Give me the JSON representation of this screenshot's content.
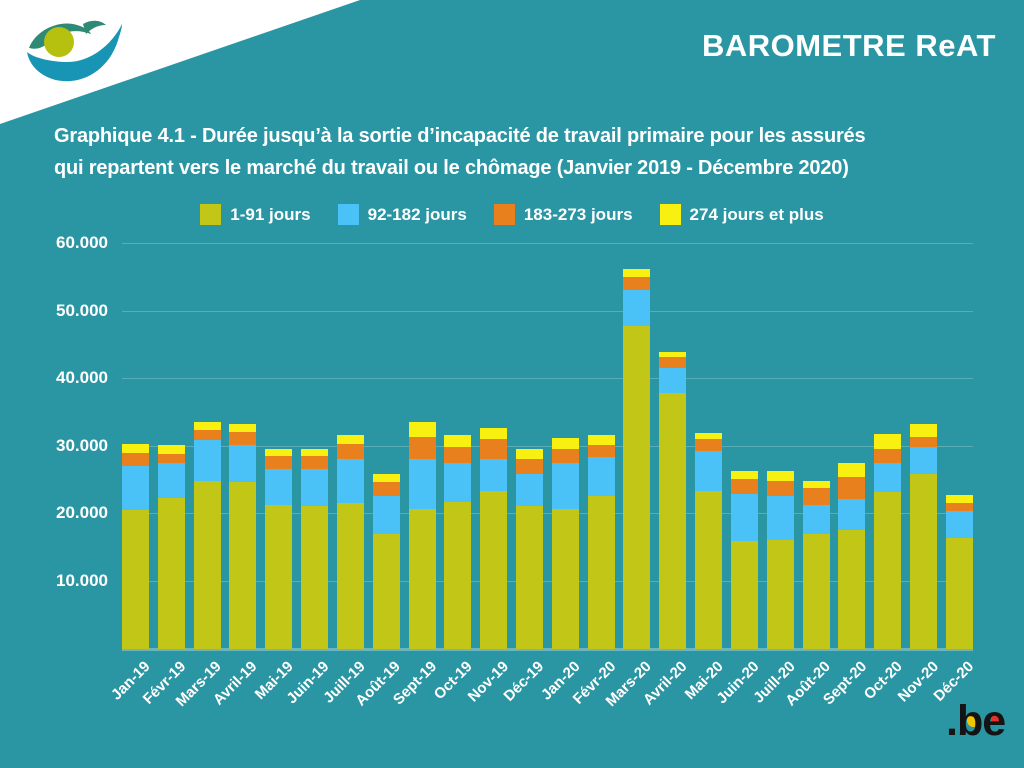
{
  "brand": {
    "title": "BAROMETRE ReAT"
  },
  "title": {
    "line1": "Graphique 4.1 - Durée jusqu’à la sortie d’incapacité de travail primaire pour les assurés",
    "line2": "qui repartent vers le marché du travail ou le chômage (Janvier 2019 - Décembre 2020)"
  },
  "footer": {
    "be_logo_text": ".be"
  },
  "colors": {
    "background": "#2b96a3",
    "header_band": "#ffffff",
    "text": "#ffffff",
    "gridline": "rgba(255,255,255,0.22)",
    "logo_light_teal": "#1895b4",
    "logo_dark_teal": "#2e8a74",
    "logo_olive": "#b5c00f",
    "be_black": "#141414",
    "be_yellow": "#f2c500",
    "be_red": "#e63229"
  },
  "chart_data": {
    "type": "bar",
    "stacked": true,
    "grid": true,
    "legend_position": "top",
    "ylim": [
      0,
      62000
    ],
    "xlabel": "",
    "ylabel": "",
    "categories": [
      "Jan-19",
      "Févr-19",
      "Mars-19",
      "Avril-19",
      "Mai-19",
      "Juin-19",
      "Juill-19",
      "Août-19",
      "Sept-19",
      "Oct-19",
      "Nov-19",
      "Déc-19",
      "Jan-20",
      "Févr-20",
      "Mars-20",
      "Avril-20",
      "Mai-20",
      "Juin-20",
      "Juill-20",
      "Août-20",
      "Sept-20",
      "Oct-20",
      "Nov-20",
      "Déc-20"
    ],
    "series": [
      {
        "name": "1-91 jours",
        "color": "#c2c616",
        "values": [
          20600,
          22300,
          24900,
          24700,
          21300,
          21200,
          21600,
          17100,
          20700,
          21800,
          23400,
          21200,
          20700,
          22600,
          47800,
          37900,
          23400,
          16000,
          16200,
          17100,
          17700,
          23200,
          25900,
          16500
        ]
      },
      {
        "name": "92-182 jours",
        "color": "#4ac2f8",
        "values": [
          6500,
          5300,
          6000,
          5500,
          5300,
          5500,
          6500,
          5500,
          7400,
          5700,
          4800,
          4800,
          6800,
          5900,
          5400,
          3800,
          6000,
          6900,
          6500,
          4200,
          4500,
          4400,
          4100,
          4000
        ]
      },
      {
        "name": "183-273 jours",
        "color": "#e8811d",
        "values": [
          1900,
          1300,
          1500,
          2000,
          2000,
          1900,
          2200,
          2100,
          3300,
          2500,
          2900,
          2100,
          2200,
          1700,
          1900,
          1500,
          1700,
          2300,
          2200,
          2500,
          3300,
          2100,
          1400,
          1100
        ]
      },
      {
        "name": "274 jours et plus",
        "color": "#f8f011",
        "values": [
          1400,
          1400,
          1300,
          1100,
          1100,
          1100,
          1400,
          1200,
          2300,
          1700,
          1600,
          1500,
          1600,
          1500,
          1200,
          800,
          900,
          1100,
          1500,
          1100,
          2100,
          2200,
          1900,
          1200
        ]
      }
    ],
    "y_ticks": [
      {
        "value": 10000,
        "label": "10.000"
      },
      {
        "value": 20000,
        "label": "20.000"
      },
      {
        "value": 30000,
        "label": "30.000"
      },
      {
        "value": 40000,
        "label": "40.000"
      },
      {
        "value": 50000,
        "label": "50.000"
      },
      {
        "value": 60000,
        "label": "60.000"
      }
    ]
  }
}
